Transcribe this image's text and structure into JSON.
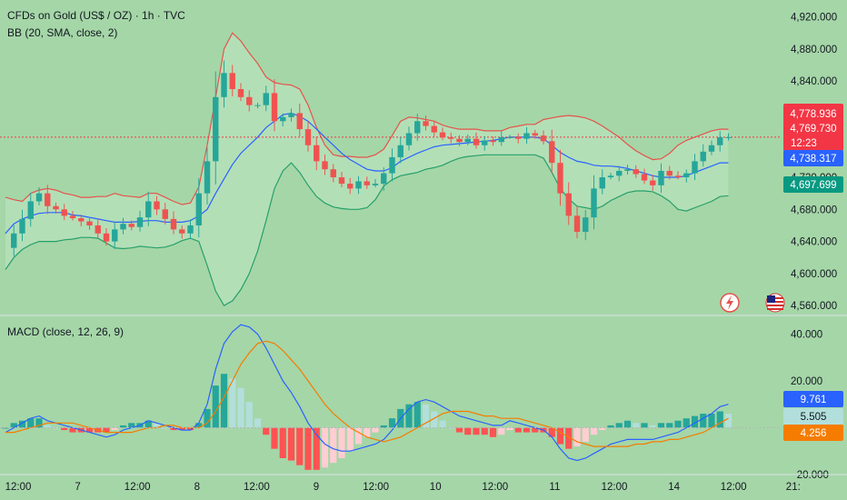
{
  "header": {
    "title": "CFDs on Gold (US$ / OZ) · 1h · TVC",
    "indicator": "BB (20, SMA, close, 2)",
    "macd_title": "MACD (close, 12, 26, 9)"
  },
  "colors": {
    "background": "#a5d6a7",
    "up": "#26a69a",
    "down": "#ef5350",
    "bb_upper": "#e5534b",
    "bb_basis": "#2962ff",
    "bb_lower": "#26a069",
    "bb_fill": "#b9e3be",
    "macd_line": "#2962ff",
    "signal_line": "#f57c00",
    "hist_up_strong": "#26a69a",
    "hist_up_weak": "#b2dfdb",
    "hist_down_strong": "#ff5252",
    "hist_down_weak": "#ffcdd2",
    "price_tag_red": "#f23645",
    "price_tag_blue": "#2962ff",
    "price_tag_green": "#089981",
    "macd_tag_orange": "#f57c00",
    "macd_tag_light": "#b2dfdb"
  },
  "icons": {
    "alert": "lightning-icon",
    "calendar": "us-flag-icon"
  },
  "chart_data": [
    {
      "type": "candlestick",
      "title": "CFDs on Gold (US$ / OZ) · 1h · TVC",
      "y_ticks": [
        "4,920.000",
        "4,880.000",
        "4,840.000",
        "4,800.000",
        "4,760.000",
        "4,720.000",
        "4,680.000",
        "4,640.000",
        "4,600.000",
        "4,560.000"
      ],
      "y_tick_values": [
        4920,
        4880,
        4840,
        4800,
        4760,
        4720,
        4680,
        4640,
        4600,
        4560
      ],
      "ylim": [
        4550,
        4932
      ],
      "x_labels": [
        "12:00",
        "7",
        "12:00",
        "8",
        "12:00",
        "9",
        "12:00",
        "10",
        "12:00",
        "11",
        "12:00",
        "14",
        "12:00",
        "21:"
      ],
      "close_path": [
        4632,
        4650,
        4668,
        4690,
        4700,
        4684,
        4680,
        4672,
        4669,
        4665,
        4660,
        4650,
        4640,
        4655,
        4662,
        4658,
        4670,
        4690,
        4680,
        4668,
        4655,
        4650,
        4660,
        4700,
        4740,
        4820,
        4850,
        4830,
        4820,
        4810,
        4810,
        4825,
        4790,
        4795,
        4800,
        4780,
        4760,
        4740,
        4730,
        4720,
        4712,
        4706,
        4715,
        4710,
        4712,
        4725,
        4745,
        4760,
        4775,
        4790,
        4784,
        4776,
        4770,
        4768,
        4764,
        4768,
        4760,
        4766,
        4764,
        4770,
        4770,
        4768,
        4775,
        4772,
        4765,
        4738,
        4700,
        4672,
        4652,
        4670,
        4706,
        4720,
        4722,
        4728,
        4730,
        4724,
        4716,
        4710,
        4728,
        4722,
        4720,
        4725,
        4740,
        4752,
        4760,
        4770,
        4770
      ],
      "bb_upper": [
        4695,
        4692,
        4690,
        4700,
        4704,
        4706,
        4704,
        4700,
        4698,
        4695,
        4695,
        4696,
        4696,
        4700,
        4697,
        4696,
        4695,
        4700,
        4700,
        4695,
        4690,
        4686,
        4688,
        4708,
        4760,
        4820,
        4880,
        4900,
        4890,
        4875,
        4862,
        4845,
        4838,
        4836,
        4835,
        4830,
        4810,
        4782,
        4760,
        4748,
        4746,
        4746,
        4745,
        4745,
        4748,
        4755,
        4772,
        4790,
        4795,
        4794,
        4792,
        4790,
        4785,
        4782,
        4780,
        4780,
        4780,
        4778,
        4778,
        4778,
        4782,
        4784,
        4786,
        4786,
        4792,
        4794,
        4796,
        4797,
        4796,
        4794,
        4790,
        4784,
        4777,
        4770,
        4761,
        4753,
        4747,
        4742,
        4743,
        4750,
        4760,
        4766,
        4770,
        4774,
        4778,
        4780,
        4780
      ],
      "bb_basis": [
        4650,
        4662,
        4668,
        4672,
        4675,
        4676,
        4676,
        4676,
        4673,
        4672,
        4670,
        4668,
        4666,
        4664,
        4664,
        4664,
        4665,
        4666,
        4666,
        4664,
        4664,
        4664,
        4666,
        4672,
        4680,
        4700,
        4718,
        4736,
        4750,
        4760,
        4770,
        4782,
        4790,
        4798,
        4800,
        4796,
        4790,
        4780,
        4770,
        4760,
        4750,
        4742,
        4736,
        4730,
        4728,
        4728,
        4732,
        4740,
        4745,
        4750,
        4754,
        4758,
        4760,
        4761,
        4762,
        4763,
        4764,
        4765,
        4766,
        4768,
        4770,
        4770,
        4770,
        4770,
        4768,
        4760,
        4751,
        4745,
        4740,
        4738,
        4735,
        4734,
        4734,
        4733,
        4731,
        4728,
        4725,
        4722,
        4720,
        4720,
        4720,
        4722,
        4726,
        4730,
        4734,
        4738,
        4738
      ],
      "bb_lower": [
        4605,
        4620,
        4630,
        4636,
        4640,
        4640,
        4640,
        4642,
        4643,
        4645,
        4645,
        4644,
        4638,
        4632,
        4631,
        4632,
        4634,
        4633,
        4632,
        4633,
        4636,
        4641,
        4644,
        4640,
        4610,
        4578,
        4560,
        4566,
        4580,
        4600,
        4628,
        4666,
        4706,
        4728,
        4738,
        4726,
        4710,
        4696,
        4688,
        4683,
        4681,
        4680,
        4680,
        4682,
        4692,
        4709,
        4717,
        4722,
        4724,
        4726,
        4730,
        4732,
        4735,
        4740,
        4744,
        4746,
        4747,
        4748,
        4748,
        4748,
        4748,
        4748,
        4748,
        4748,
        4744,
        4726,
        4706,
        4693,
        4684,
        4682,
        4680,
        4684,
        4691,
        4696,
        4701,
        4703,
        4703,
        4702,
        4697,
        4690,
        4680,
        4678,
        4682,
        4686,
        4690,
        4696,
        4697
      ],
      "current_price": "4,778.936",
      "last_close": "4,769.730",
      "countdown": "12:23",
      "bb_basis_tag": "4,738.317",
      "bb_lower_tag": "4,697.699"
    },
    {
      "type": "bar",
      "title": "MACD (close, 12, 26, 9)",
      "y_ticks": [
        "40.000",
        "20.000",
        "−20.000"
      ],
      "y_tick_values": [
        40,
        20,
        -20
      ],
      "ylim": [
        -20,
        46
      ],
      "macd": [
        -2,
        0,
        2,
        4,
        5,
        3,
        2,
        1,
        0,
        -1,
        -2,
        -3,
        -4,
        -3,
        -1,
        0,
        1,
        3,
        2,
        1,
        0,
        -1,
        -1,
        2,
        10,
        25,
        36,
        41,
        44,
        43,
        40,
        34,
        27,
        20,
        15,
        9,
        2,
        -3,
        -7,
        -9,
        -10,
        -10,
        -9,
        -8,
        -7,
        -5,
        -1,
        4,
        8,
        11,
        12,
        11,
        9,
        7,
        5,
        4,
        3,
        2,
        1,
        1,
        3,
        2,
        1,
        0,
        -1,
        -4,
        -9,
        -13,
        -14,
        -13,
        -11,
        -9,
        -7,
        -6,
        -5,
        -5,
        -5,
        -5,
        -4,
        -3,
        -2,
        0,
        2,
        4,
        6,
        9,
        10
      ],
      "signal": [
        -2,
        -2,
        -1,
        0,
        1,
        2,
        2,
        2,
        2,
        1,
        0,
        -1,
        -2,
        -2,
        -2,
        -2,
        -1,
        0,
        0,
        1,
        1,
        0,
        0,
        0,
        2,
        7,
        13,
        20,
        27,
        32,
        36,
        37,
        36,
        33,
        29,
        25,
        20,
        15,
        10,
        6,
        3,
        0,
        -2,
        -4,
        -5,
        -6,
        -5,
        -4,
        -2,
        0,
        2,
        4,
        6,
        7,
        7,
        7,
        6,
        5,
        5,
        4,
        4,
        4,
        3,
        2,
        1,
        0,
        -2,
        -4,
        -6,
        -7,
        -8,
        -8,
        -8,
        -8,
        -8,
        -7,
        -7,
        -6,
        -6,
        -5,
        -5,
        -4,
        -3,
        -2,
        0,
        2,
        4
      ],
      "histogram_note": "histogram = macd - signal",
      "macd_tag": "9.761",
      "hist_tag": "5.505",
      "signal_tag": "4.256"
    }
  ]
}
